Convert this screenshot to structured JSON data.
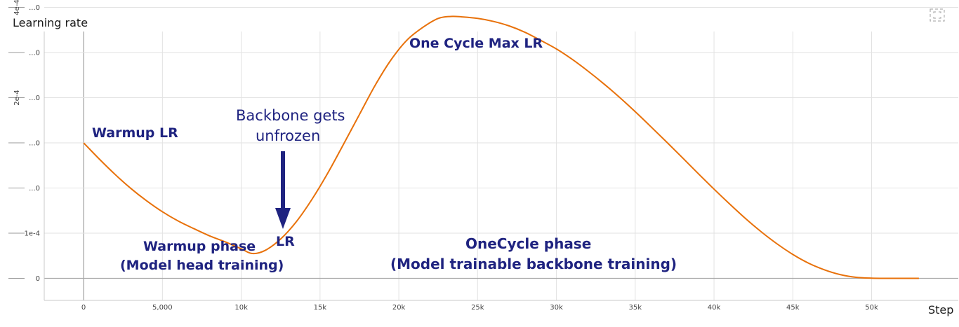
{
  "chart_data": {
    "type": "line",
    "title": "Learning rate",
    "xlabel": "Step",
    "x_ticks": [
      "0",
      "5,000",
      "10k",
      "15k",
      "20k",
      "25k",
      "30k",
      "35k",
      "40k",
      "45k",
      "50k"
    ],
    "x_tick_values": [
      0,
      5000,
      10000,
      15000,
      20000,
      25000,
      30000,
      35000,
      40000,
      45000,
      50000
    ],
    "y_tick_values": [
      0,
      5e-05,
      0.0001,
      0.00015,
      0.0002,
      0.00025,
      0.0003
    ],
    "y_tick_labels": [
      "0",
      "1e-4",
      "...0",
      "...0",
      "...0",
      "...0",
      "...0"
    ],
    "y_tick_side_labels": [
      "",
      "",
      "",
      "",
      "2e-4",
      "",
      "4e-4"
    ],
    "xlim": [
      -2500,
      55500
    ],
    "ylim": [
      -2.44e-05,
      0.0002733
    ],
    "grid": true,
    "color": "#e8710a",
    "series": [
      {
        "x": [
          0,
          1000,
          2000,
          3000,
          4000,
          5000,
          6000,
          7000,
          8000,
          9000,
          10000,
          10700,
          11500,
          12500,
          13500,
          14500,
          15500,
          16500,
          17500,
          18500,
          19500,
          20500,
          21500,
          22500,
          23300,
          24000,
          25000,
          26000,
          27000,
          28000,
          29000,
          30000,
          31000,
          32000,
          33000,
          34000,
          35000,
          36000,
          37000,
          38000,
          39000,
          40000,
          41000,
          42000,
          43000,
          44000,
          45000,
          46000,
          47000,
          48000,
          49000,
          50000,
          51000,
          52000,
          53000
        ],
        "y": [
          0.00015,
          0.000132,
          0.000115,
          9.95e-05,
          8.58e-05,
          7.37e-05,
          6.35e-05,
          5.5e-05,
          4.7e-05,
          4.03e-05,
          3.27e-05,
          2.75e-05,
          3.08e-05,
          4.35e-05,
          6.28e-05,
          8.78e-05,
          0.0001168,
          0.0001488,
          0.0001814,
          0.0002138,
          0.0002418,
          0.0002635,
          0.0002776,
          0.0002878,
          0.00029,
          0.0002895,
          0.0002878,
          0.0002845,
          0.0002795,
          0.0002725,
          0.0002635,
          0.000254,
          0.0002425,
          0.0002295,
          0.0002155,
          0.0002005,
          0.0001845,
          0.0001678,
          0.0001508,
          0.0001335,
          0.000116,
          9.88e-05,
          8.22e-05,
          6.62e-05,
          5.15e-05,
          3.82e-05,
          2.65e-05,
          1.68e-05,
          9.5e-06,
          4.2e-06,
          1.2e-06,
          2e-07,
          0.0,
          0.0,
          0.0
        ]
      }
    ],
    "annotations": {
      "warmup_lr": "Warmup LR",
      "backbone_line1": "Backbone gets",
      "backbone_line2": "unfrozen",
      "lr_min": "LR",
      "max_lr": "One Cycle Max LR",
      "warmup_phase1": "Warmup phase",
      "warmup_phase2": "(Model head training)",
      "onecycle_phase1": "OneCycle phase",
      "onecycle_phase2": "(Model trainable backbone training)"
    }
  }
}
